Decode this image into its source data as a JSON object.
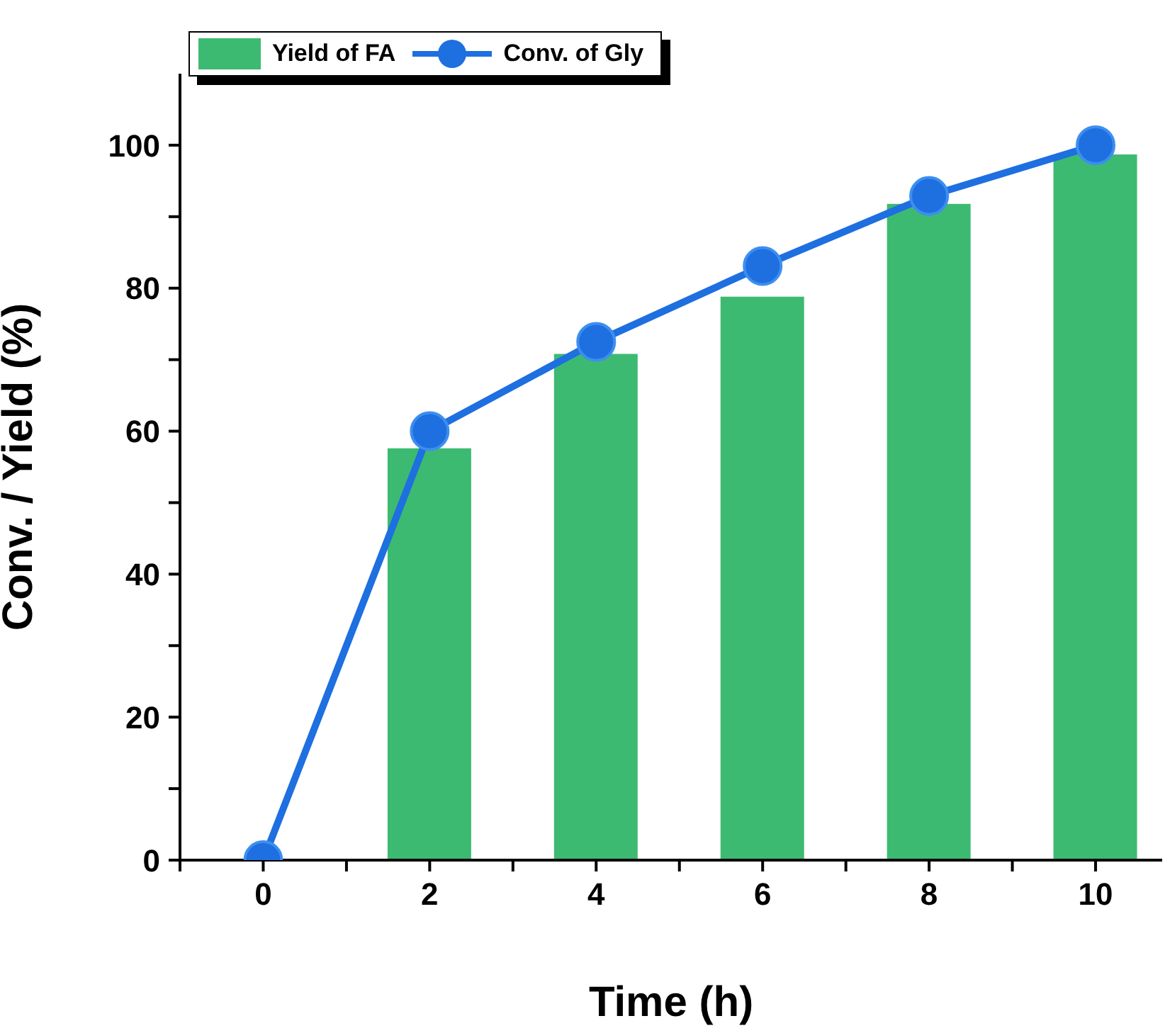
{
  "chart_data": {
    "type": "bar",
    "xlabel": "Time (h)",
    "ylabel": "Conv. / Yield (%)",
    "x": [
      0,
      2,
      4,
      6,
      8,
      10
    ],
    "series": [
      {
        "name": "Yield of FA",
        "color": "#3dba72",
        "values": [
          null,
          57.6,
          70.8,
          78.8,
          91.8,
          98.7
        ]
      },
      {
        "name": "Conv. of Gly",
        "type": "line",
        "color": "#1e6fe0",
        "values": [
          0,
          60.0,
          72.5,
          83.1,
          92.9,
          100
        ]
      }
    ],
    "xlim": [
      -1,
      10.8
    ],
    "xticks": [
      {
        "value": -1,
        "label": null
      },
      0,
      {
        "value": 1,
        "label": null
      },
      2,
      {
        "value": 3,
        "label": null
      },
      4,
      {
        "value": 5,
        "label": null
      },
      6,
      {
        "value": 7,
        "label": null
      },
      8,
      {
        "value": 9,
        "label": null
      },
      10
    ],
    "ylim": [
      0,
      110
    ],
    "yticks": [
      0,
      {
        "value": 10,
        "label": null
      },
      20,
      {
        "value": 30,
        "label": null
      },
      40,
      {
        "value": 50,
        "label": null
      },
      60,
      {
        "value": 70,
        "label": null
      },
      80,
      {
        "value": 90,
        "label": null
      },
      100
    ],
    "grid": false,
    "legend": "top left",
    "marker": "circle",
    "line_style": "solid"
  }
}
